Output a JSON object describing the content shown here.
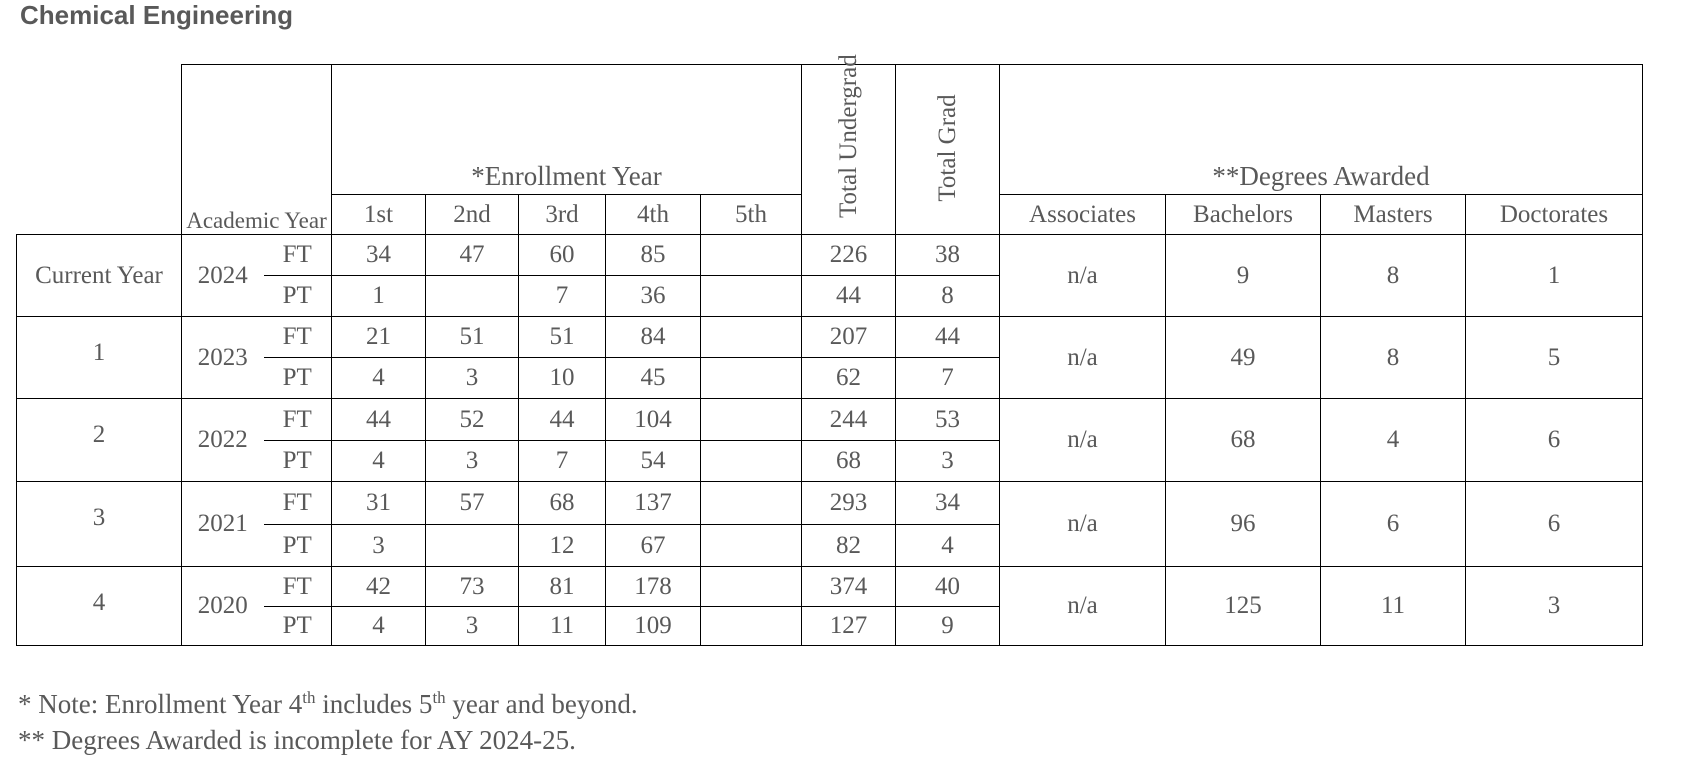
{
  "title": "Chemical Engineering",
  "header": {
    "academic_year": "Academic Year",
    "enrollment_year": "*Enrollment Year",
    "enrollment_cols": [
      "1st",
      "2nd",
      "3rd",
      "4th",
      "5th"
    ],
    "total_undergrad": "Total Undergrad",
    "total_grad": "Total Grad",
    "degrees_awarded": "**Degrees Awarded",
    "degree_cols": [
      "Associates",
      "Bachelors",
      "Masters",
      "Doctorates"
    ]
  },
  "rows": [
    {
      "label": "Current Year",
      "year": "2024",
      "ft": {
        "type": "FT",
        "e1": "34",
        "e2": "47",
        "e3": "60",
        "e4": "85",
        "e5": "",
        "undergrad": "226",
        "grad": "38"
      },
      "pt": {
        "type": "PT",
        "e1": "1",
        "e2": "",
        "e3": "7",
        "e4": "36",
        "e5": "",
        "undergrad": "44",
        "grad": "8"
      },
      "degrees": {
        "associates": "n/a",
        "bachelors": "9",
        "masters": "8",
        "doctorates": "1"
      }
    },
    {
      "label": "1",
      "year": "2023",
      "ft": {
        "type": "FT",
        "e1": "21",
        "e2": "51",
        "e3": "51",
        "e4": "84",
        "e5": "",
        "undergrad": "207",
        "grad": "44"
      },
      "pt": {
        "type": "PT",
        "e1": "4",
        "e2": "3",
        "e3": "10",
        "e4": "45",
        "e5": "",
        "undergrad": "62",
        "grad": "7"
      },
      "degrees": {
        "associates": "n/a",
        "bachelors": "49",
        "masters": "8",
        "doctorates": "5"
      }
    },
    {
      "label": "2",
      "year": "2022",
      "ft": {
        "type": "FT",
        "e1": "44",
        "e2": "52",
        "e3": "44",
        "e4": "104",
        "e5": "",
        "undergrad": "244",
        "grad": "53"
      },
      "pt": {
        "type": "PT",
        "e1": "4",
        "e2": "3",
        "e3": "7",
        "e4": "54",
        "e5": "",
        "undergrad": "68",
        "grad": "3"
      },
      "degrees": {
        "associates": "n/a",
        "bachelors": "68",
        "masters": "4",
        "doctorates": "6"
      }
    },
    {
      "label": "3",
      "year": "2021",
      "ft": {
        "type": "FT",
        "e1": "31",
        "e2": "57",
        "e3": "68",
        "e4": "137",
        "e5": "",
        "undergrad": "293",
        "grad": "34"
      },
      "pt": {
        "type": "PT",
        "e1": "3",
        "e2": "",
        "e3": "12",
        "e4": "67",
        "e5": "",
        "undergrad": "82",
        "grad": "4"
      },
      "degrees": {
        "associates": "n/a",
        "bachelors": "96",
        "masters": "6",
        "doctorates": "6"
      }
    },
    {
      "label": "4",
      "year": "2020",
      "ft": {
        "type": "FT",
        "e1": "42",
        "e2": "73",
        "e3": "81",
        "e4": "178",
        "e5": "",
        "undergrad": "374",
        "grad": "40"
      },
      "pt": {
        "type": "PT",
        "e1": "4",
        "e2": "3",
        "e3": "11",
        "e4": "109",
        "e5": "",
        "undergrad": "127",
        "grad": "9"
      },
      "degrees": {
        "associates": "n/a",
        "bachelors": "125",
        "masters": "11",
        "doctorates": "3"
      }
    }
  ],
  "notes": {
    "note1_pre": "* Note: Enrollment Year 4",
    "note1_sup1": "th",
    "note1_mid": " includes 5",
    "note1_sup2": "th",
    "note1_post": " year and beyond.",
    "note2": "** Degrees Awarded is incomplete for AY 2024-25."
  }
}
